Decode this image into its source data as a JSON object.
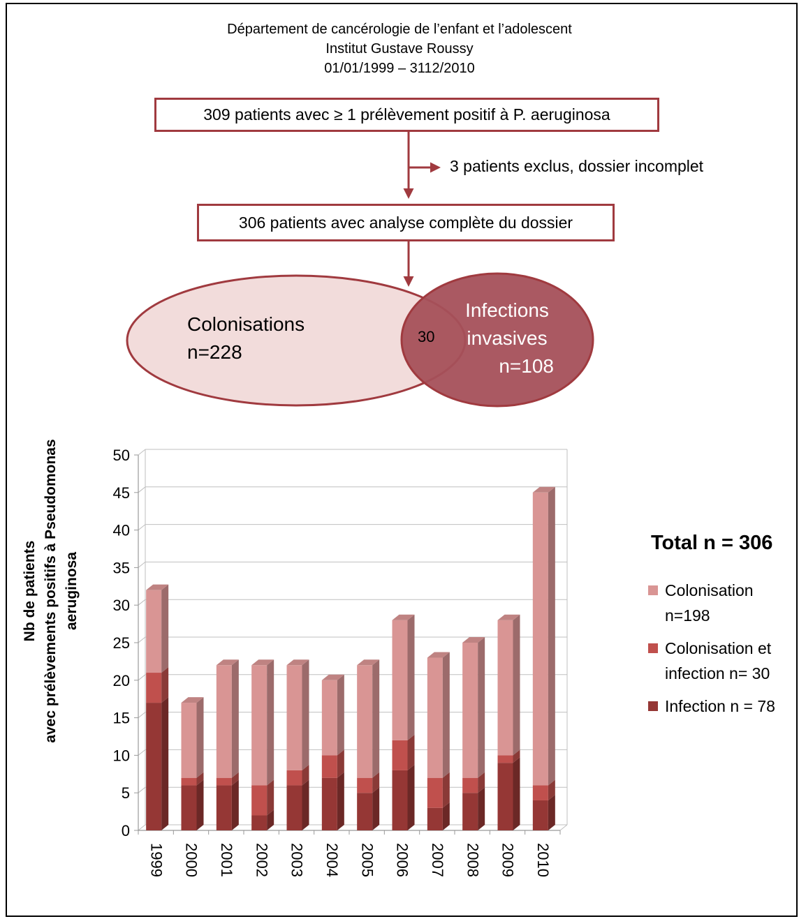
{
  "header": {
    "line1": "Département de cancérologie de l’enfant et l’adolescent",
    "line2": "Institut Gustave Roussy",
    "line3": "01/01/1999 – 3112/2010"
  },
  "flowchart": {
    "box1": "309 patients avec ≥ 1 prélèvement positif à P. aeruginosa",
    "excluded": "3 patients exclus, dossier incomplet",
    "box2": "306 patients avec analyse complète du dossier",
    "colonisations": {
      "line1": "Colonisations",
      "line2": "n=228"
    },
    "infections": {
      "line1": "Infections",
      "line2": "invasives",
      "line3": "n=108"
    },
    "overlap": "30",
    "colors": {
      "border": "#a03a3f",
      "colonisation_fill": "#f2dcdb",
      "infection_fill": "#a5505a"
    }
  },
  "legend": {
    "title": "Total n = 306",
    "items": [
      {
        "line1": "Colonisation",
        "line2": "n=198",
        "color": "#d99594"
      },
      {
        "line1": "Colonisation et",
        "line2": "infection n= 30",
        "color": "#c0504d"
      },
      {
        "line1": "Infection n = 78",
        "line2": "",
        "color": "#953735"
      }
    ]
  },
  "chart_data": {
    "type": "bar",
    "stacked": true,
    "categories": [
      "1999",
      "2000",
      "2001",
      "2002",
      "2003",
      "2004",
      "2005",
      "2006",
      "2007",
      "2008",
      "2009",
      "2010"
    ],
    "series": [
      {
        "name": "Infection n = 78",
        "color": "#953735",
        "values": [
          17,
          6,
          6,
          2,
          6,
          7,
          5,
          8,
          3,
          5,
          9,
          4
        ]
      },
      {
        "name": "Colonisation et infection n= 30",
        "color": "#c0504d",
        "values": [
          4,
          1,
          1,
          4,
          2,
          3,
          2,
          4,
          4,
          2,
          1,
          2
        ]
      },
      {
        "name": "Colonisation n=198",
        "color": "#d99594",
        "values": [
          11,
          10,
          15,
          16,
          14,
          10,
          15,
          16,
          16,
          18,
          18,
          39
        ]
      }
    ],
    "ylabel_line1": "Nb de patients",
    "ylabel_line2": "avec prélèvements positifs à Pseudomonas aeruginosa",
    "ylim": [
      0,
      50
    ],
    "yticks": [
      0,
      5,
      10,
      15,
      20,
      25,
      30,
      35,
      40,
      45,
      50
    ],
    "grid": true
  }
}
